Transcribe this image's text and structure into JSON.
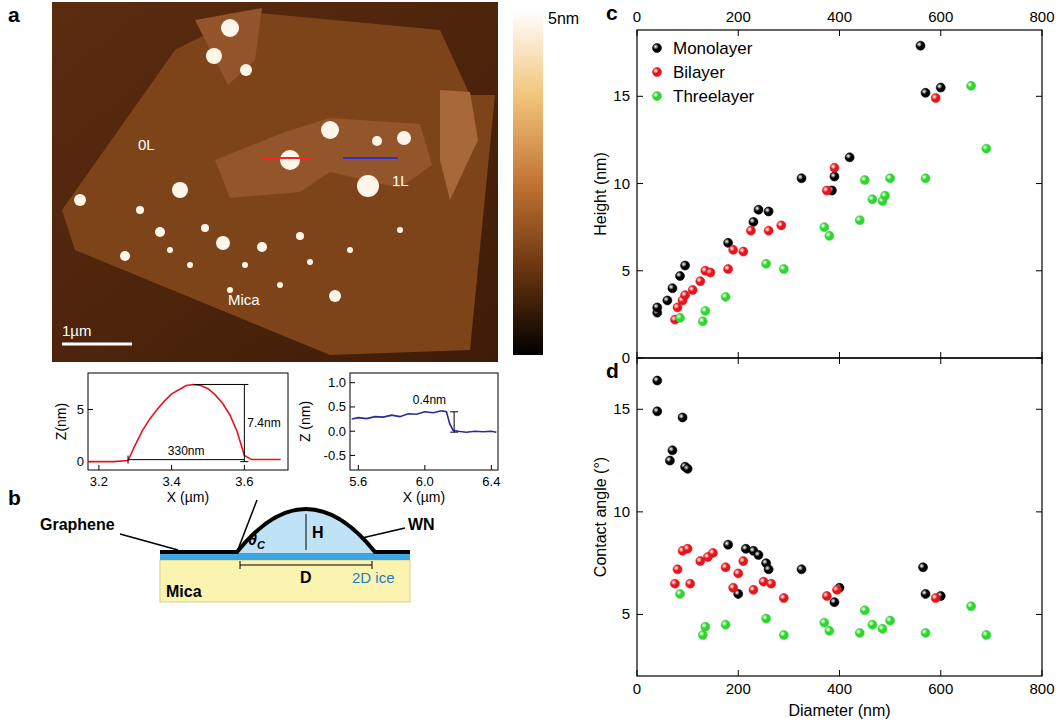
{
  "figure": {
    "panels": [
      "a",
      "b",
      "c",
      "d"
    ],
    "afm": {
      "zero_layer": "0L",
      "one_layer": "1L",
      "substrate": "Mica",
      "scale_bar": "1µm",
      "colorbar": "5nm"
    },
    "schematic": {
      "graphene": "Graphene",
      "water": "WN",
      "angle_symbol": "θ",
      "angle_subscript": "C",
      "height": "H",
      "diameter": "D",
      "ice": "2D ice",
      "substrate": "Mica"
    }
  },
  "chart_data": [
    {
      "type": "line",
      "xlabel": "X (µm)",
      "ylabel": "Z(nm)",
      "x": [
        3.17,
        3.2,
        3.24,
        3.28,
        3.3,
        3.32,
        3.34,
        3.36,
        3.38,
        3.4,
        3.42,
        3.44,
        3.46,
        3.48,
        3.5,
        3.52,
        3.54,
        3.56,
        3.58,
        3.6,
        3.62,
        3.7
      ],
      "series": [
        {
          "color": "#e8141b",
          "values": [
            0,
            0,
            0,
            0.1,
            1.6,
            3.0,
            4.1,
            5.0,
            5.8,
            6.5,
            6.9,
            7.3,
            7.4,
            7.3,
            7.0,
            6.4,
            5.6,
            4.5,
            2.9,
            0.6,
            0.2,
            0.2
          ]
        }
      ],
      "xlim": [
        3.17,
        3.72
      ],
      "xticks": [
        3.2,
        3.4,
        3.6
      ],
      "ylim": [
        -0.8,
        8.5
      ],
      "yticks": [
        0,
        5
      ],
      "annotations": [
        "7.4nm",
        "330nm"
      ]
    },
    {
      "type": "line",
      "xlabel": "X (µm)",
      "ylabel": "Z (nm)",
      "x": [
        5.56,
        5.6,
        5.65,
        5.7,
        5.75,
        5.8,
        5.85,
        5.9,
        5.95,
        6.0,
        6.05,
        6.1,
        6.13,
        6.15,
        6.17,
        6.2,
        6.25,
        6.3,
        6.35,
        6.4,
        6.43
      ],
      "series": [
        {
          "color": "#2a2a9a",
          "values": [
            0.25,
            0.28,
            0.26,
            0.3,
            0.29,
            0.33,
            0.3,
            0.36,
            0.35,
            0.4,
            0.38,
            0.42,
            0.4,
            0.15,
            0.02,
            0.0,
            -0.02,
            0.0,
            -0.01,
            0.0,
            -0.02
          ]
        }
      ],
      "xlim": [
        5.55,
        6.44
      ],
      "xticks": [
        5.6,
        {
          "value": 6,
          "label": "6.0"
        },
        6.4
      ],
      "ylim": [
        -0.8,
        1.2
      ],
      "yticks": [
        -0.5,
        {
          "value": 0,
          "label": "0.0"
        },
        0.5,
        {
          "value": 1,
          "label": "1.0"
        }
      ],
      "annotations": [
        "0.4nm"
      ]
    },
    {
      "type": "scatter",
      "ylabel": "Height (nm)",
      "legend": "upper left",
      "xlim": [
        0,
        800
      ],
      "xticks": [
        0,
        200,
        400,
        600,
        800
      ],
      "ylim": [
        0,
        18.8
      ],
      "yticks": [
        0,
        5,
        10,
        15
      ],
      "series": [
        {
          "name": "Monolayer",
          "color": "#000000",
          "marker": "circle",
          "x": [
            40,
            40,
            60,
            70,
            85,
            95,
            180,
            230,
            240,
            260,
            325,
            385,
            390,
            420,
            560,
            570,
            600
          ],
          "values": [
            2.6,
            2.9,
            3.3,
            4.0,
            4.7,
            5.3,
            6.6,
            7.8,
            8.5,
            8.4,
            10.3,
            9.6,
            10.4,
            11.5,
            17.9,
            15.2,
            15.5
          ]
        },
        {
          "name": "Bilayer",
          "color": "#e8141b",
          "marker": "circle",
          "x": [
            75,
            80,
            90,
            95,
            110,
            125,
            135,
            145,
            180,
            190,
            210,
            225,
            260,
            285,
            375,
            390,
            590
          ],
          "values": [
            2.2,
            2.9,
            3.3,
            3.6,
            3.9,
            4.4,
            5.0,
            4.9,
            5.1,
            6.2,
            6.1,
            7.3,
            7.3,
            7.6,
            9.6,
            10.9,
            14.9
          ]
        },
        {
          "name": "Threelayer",
          "color": "#2fd62f",
          "marker": "circle",
          "x": [
            85,
            130,
            135,
            175,
            255,
            290,
            370,
            380,
            440,
            450,
            465,
            485,
            490,
            500,
            570,
            660,
            690
          ],
          "values": [
            2.3,
            2.1,
            2.7,
            3.5,
            5.4,
            5.1,
            7.5,
            7.0,
            7.9,
            10.2,
            9.1,
            9.0,
            9.3,
            10.3,
            10.3,
            15.6,
            12.0
          ]
        }
      ]
    },
    {
      "type": "scatter",
      "xlabel": "Diameter (nm)",
      "ylabel": "Contact angle (°)",
      "xlim": [
        0,
        800
      ],
      "xticks": [
        0,
        200,
        400,
        600,
        800
      ],
      "ylim": [
        2,
        17.5
      ],
      "yticks": [
        5,
        10,
        15
      ],
      "series": [
        {
          "color": "#000000",
          "marker": "circle",
          "x": [
            40,
            40,
            65,
            70,
            90,
            95,
            100,
            180,
            200,
            215,
            230,
            240,
            255,
            260,
            325,
            390,
            400,
            565,
            570,
            600
          ],
          "values": [
            16.4,
            14.9,
            12.5,
            13.0,
            14.6,
            12.2,
            12.1,
            8.4,
            6.0,
            8.2,
            8.1,
            7.9,
            7.5,
            7.2,
            7.2,
            5.6,
            6.3,
            7.3,
            6.0,
            5.9
          ]
        },
        {
          "color": "#e8141b",
          "marker": "circle",
          "x": [
            75,
            80,
            90,
            100,
            105,
            125,
            140,
            150,
            175,
            190,
            200,
            210,
            230,
            250,
            265,
            290,
            375,
            395,
            590
          ],
          "values": [
            6.5,
            7.2,
            8.1,
            8.2,
            6.5,
            7.6,
            7.8,
            8.0,
            7.3,
            6.3,
            7.0,
            7.6,
            6.2,
            6.6,
            6.5,
            5.8,
            5.9,
            6.2,
            5.8
          ]
        },
        {
          "color": "#2fd62f",
          "marker": "circle",
          "x": [
            85,
            130,
            135,
            175,
            255,
            290,
            370,
            380,
            440,
            450,
            465,
            485,
            500,
            570,
            660,
            690
          ],
          "values": [
            6.0,
            4.0,
            4.4,
            4.5,
            4.8,
            4.0,
            4.6,
            4.2,
            4.1,
            5.2,
            4.5,
            4.3,
            4.7,
            4.1,
            5.4,
            4.0
          ]
        }
      ]
    }
  ]
}
